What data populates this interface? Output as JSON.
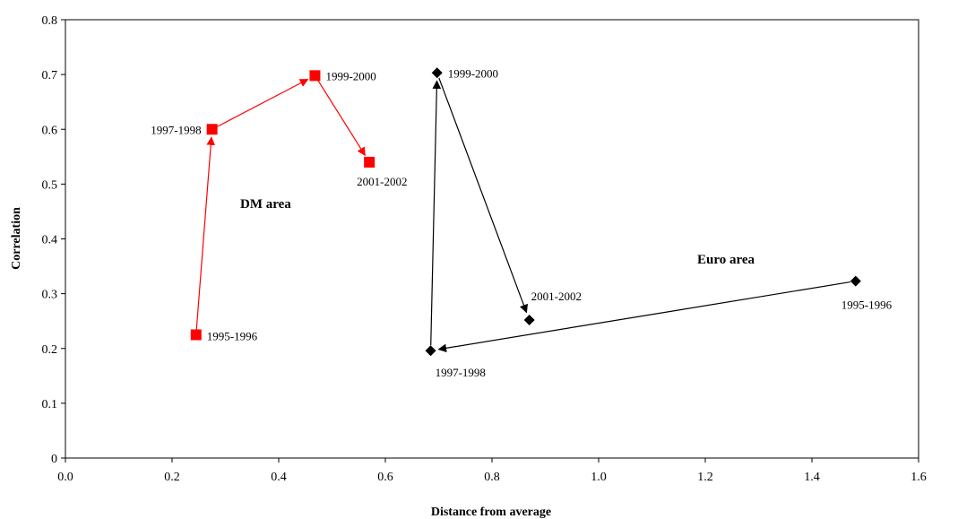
{
  "chart_data": {
    "type": "scatter",
    "xlabel": "Distance from average",
    "ylabel": "Correlation",
    "xlim": [
      0,
      1.6
    ],
    "ylim": [
      0,
      0.8
    ],
    "xticks": [
      "0.0",
      "0.2",
      "0.4",
      "0.6",
      "0.8",
      "1.0",
      "1.2",
      "1.4",
      "1.6"
    ],
    "yticks": [
      "0",
      "0.1",
      "0.2",
      "0.3",
      "0.4",
      "0.5",
      "0.6",
      "0.7",
      "0.8"
    ],
    "grid": false,
    "series": [
      {
        "name": "DM area",
        "color": "#ff0000",
        "marker": "square",
        "connected": "arrows",
        "points": [
          {
            "label": "1995-1996",
            "x": 0.245,
            "y": 0.225
          },
          {
            "label": "1997-1998",
            "x": 0.275,
            "y": 0.6
          },
          {
            "label": "1999-2000",
            "x": 0.468,
            "y": 0.698
          },
          {
            "label": "2001-2002",
            "x": 0.57,
            "y": 0.54
          }
        ]
      },
      {
        "name": "Euro area",
        "color": "#000000",
        "marker": "diamond",
        "connected": "arrows",
        "points": [
          {
            "label": "1995-1996",
            "x": 1.482,
            "y": 0.323
          },
          {
            "label": "1997-1998",
            "x": 0.685,
            "y": 0.196
          },
          {
            "label": "1999-2000",
            "x": 0.697,
            "y": 0.703
          },
          {
            "label": "2001-2002",
            "x": 0.87,
            "y": 0.252
          }
        ]
      }
    ]
  }
}
